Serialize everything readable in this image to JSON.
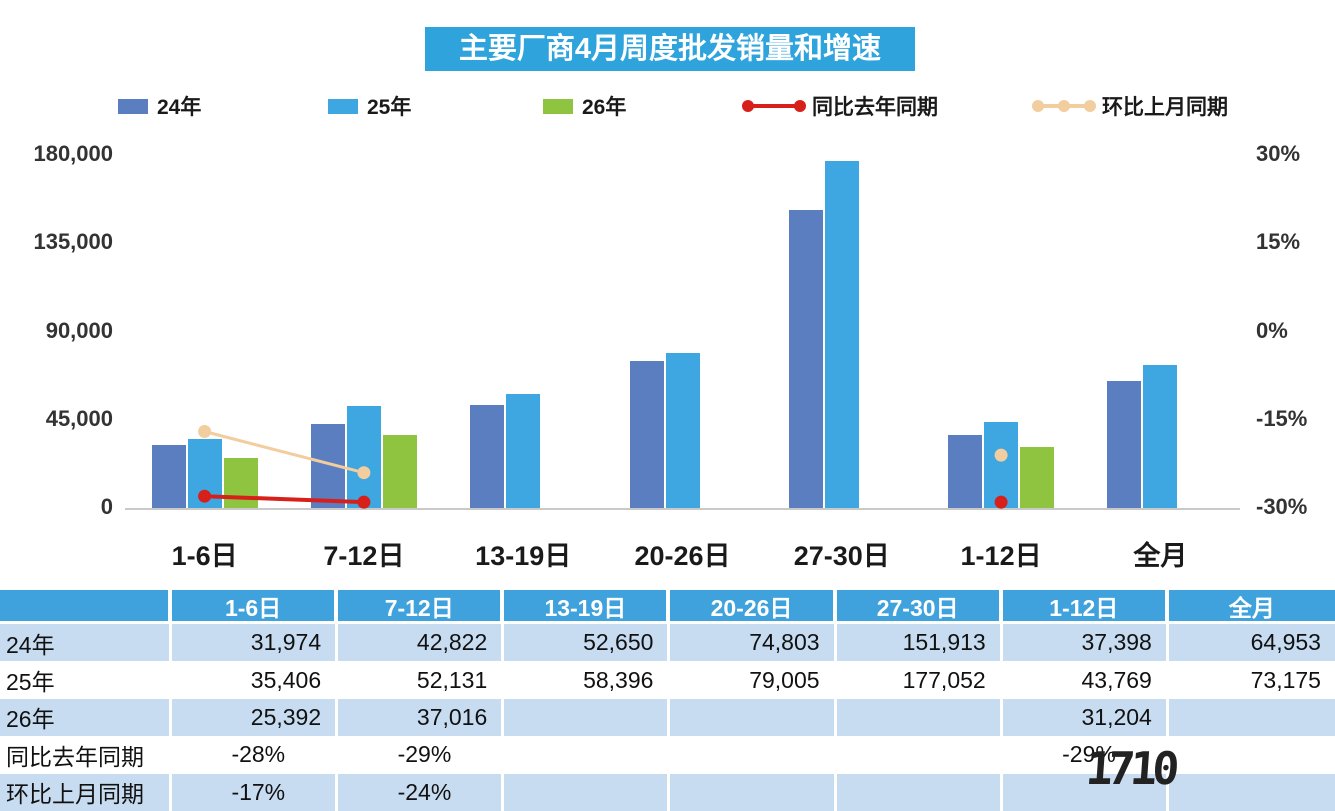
{
  "title": "主要厂商4月周度批发销量和增速",
  "legend": [
    {
      "label": "24年",
      "type": "bar",
      "color": "#5B7EC1",
      "dots": 0
    },
    {
      "label": "25年",
      "type": "bar",
      "color": "#3EA6E1",
      "dots": 0
    },
    {
      "label": "26年",
      "type": "bar",
      "color": "#8EC43F",
      "dots": 0
    },
    {
      "label": "同比去年同期",
      "type": "line",
      "color": "#D8201A",
      "dots": 2
    },
    {
      "label": "环比上月同期",
      "type": "line",
      "color": "#F2CD9E",
      "dots": 3
    }
  ],
  "chart_data": {
    "type": "bar",
    "subtype": "bar-line-combo",
    "title": "主要厂商4月周度批发销量和增速",
    "categories": [
      "1-6日",
      "7-12日",
      "13-19日",
      "20-26日",
      "27-30日",
      "1-12日",
      "全月"
    ],
    "bar_series": [
      {
        "name": "24年",
        "color": "#5B7EC1",
        "values": [
          31974,
          42822,
          52650,
          74803,
          151913,
          37398,
          64953
        ]
      },
      {
        "name": "25年",
        "color": "#3EA6E1",
        "values": [
          35406,
          52131,
          58396,
          79005,
          177052,
          43769,
          73175
        ]
      },
      {
        "name": "26年",
        "color": "#8EC43F",
        "values": [
          25392,
          37016,
          null,
          null,
          null,
          31204,
          null
        ]
      }
    ],
    "line_series": [
      {
        "name": "同比去年同期",
        "color": "#D8201A",
        "width": 4,
        "values": [
          -28,
          -29,
          null,
          null,
          null,
          -29,
          null
        ]
      },
      {
        "name": "环比上月同期",
        "color": "#F2CD9E",
        "width": 3,
        "values": [
          -17,
          -24,
          null,
          null,
          null,
          -21,
          null
        ]
      }
    ],
    "left_axis": {
      "min": 0,
      "max": 180000,
      "ticks": [
        "180,000",
        "135,000",
        "90,000",
        "45,000",
        "0"
      ]
    },
    "right_axis": {
      "min": -30,
      "max": 30,
      "ticks": [
        "30%",
        "15%",
        "0%",
        "-15%",
        "-30%"
      ]
    },
    "grid": false,
    "legend_position": "top"
  },
  "table": {
    "header": [
      "",
      "1-6日",
      "7-12日",
      "13-19日",
      "20-26日",
      "27-30日",
      "1-12日",
      "全月"
    ],
    "rows": [
      {
        "label": "24年",
        "values": [
          "31,974",
          "42,822",
          "52,650",
          "74,803",
          "151,913",
          "37,398",
          "64,953"
        ]
      },
      {
        "label": "25年",
        "values": [
          "35,406",
          "52,131",
          "58,396",
          "79,005",
          "177,052",
          "43,769",
          "73,175"
        ]
      },
      {
        "label": "26年",
        "values": [
          "25,392",
          "37,016",
          "",
          "",
          "",
          "31,204",
          ""
        ]
      },
      {
        "label": "同比去年同期",
        "values": [
          "-28%",
          "-29%",
          "",
          "",
          "",
          "-29%",
          ""
        ]
      },
      {
        "label": "环比上月同期",
        "values": [
          "-17%",
          "-24%",
          "",
          "",
          "",
          "",
          ""
        ]
      }
    ]
  },
  "watermark": "1710",
  "colors": {
    "title_bg": "#2EA3DC",
    "table_header_bg": "#3FA2DC",
    "table_row_alt_bg": "#C7DCF1",
    "bar_24": "#5B7EC1",
    "bar_25": "#3EA6E1",
    "bar_26": "#8EC43F",
    "line_yoy": "#D8201A",
    "line_mom": "#F2CD9E"
  }
}
